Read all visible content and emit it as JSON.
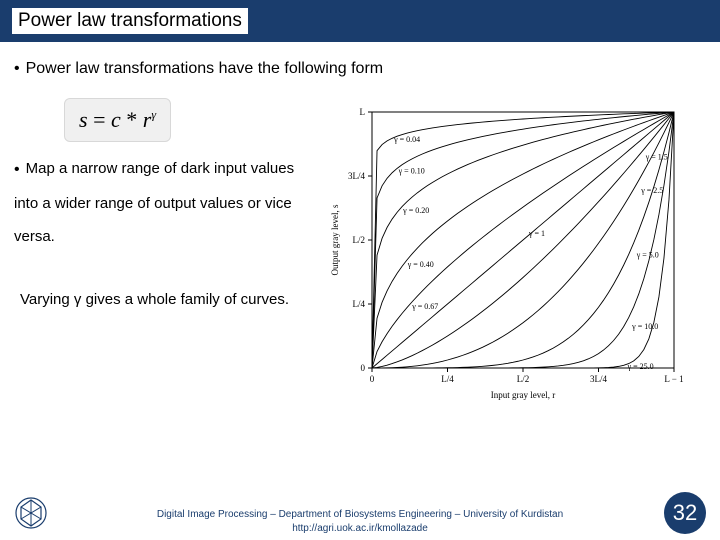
{
  "title": "Power law transformations",
  "bullet1": "Power law transformations have the following form",
  "formula": {
    "lhs": "s",
    "eq": "=",
    "c": "c",
    "star": "*",
    "r": "r",
    "exp": "γ"
  },
  "bullet2a": "Map a narrow range of dark input values",
  "bullet2b": "into a wider range of output values or vice",
  "bullet2c": "versa.",
  "vary": "Varying γ gives a whole family of curves.",
  "footer1": "Digital Image Processing – Department of Biosystems Engineering – University of Kurdistan",
  "footer2": "http://agri.uok.ac.ir/kmollazade",
  "page": "32",
  "chart": {
    "type": "line",
    "gammas": [
      0.04,
      0.1,
      0.2,
      0.4,
      0.67,
      1,
      1.5,
      2.5,
      5.0,
      10.0,
      25.0
    ],
    "gamma_labels": [
      "γ = 0.04",
      "γ = 0.10",
      "γ = 0.20",
      "γ = 0.40",
      "γ = 0.67",
      "γ = 1",
      "γ = 1.5",
      "γ = 2.5",
      "γ = 5.0",
      "γ = 10.0",
      "γ = 25.0"
    ],
    "xlabel": "Input gray level, r",
    "ylabel": "Output gray level, s",
    "xticks": [
      "0",
      "L/4",
      "L/2",
      "3L/4",
      "L − 1"
    ],
    "yticks": [
      "0",
      "L/4",
      "L/2",
      "3L/4",
      "L"
    ],
    "line_color": "#000000",
    "bg": "#ffffff",
    "axis_fontsize": 9,
    "label_fontsize": 8
  }
}
